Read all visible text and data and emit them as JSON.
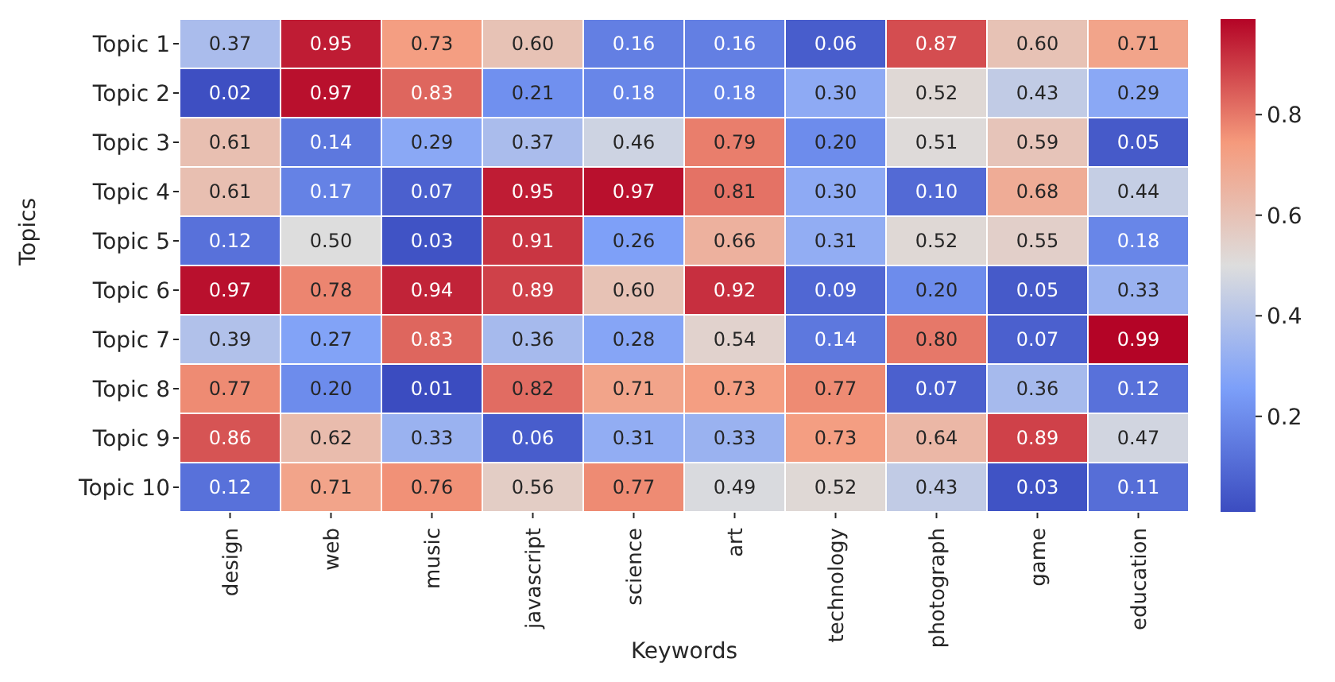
{
  "chart_data": {
    "type": "heatmap",
    "xlabel": "Keywords",
    "ylabel": "Topics",
    "categories": [
      "design",
      "web",
      "music",
      "javascript",
      "science",
      "art",
      "technology",
      "photograph",
      "game",
      "education"
    ],
    "y_categories": [
      "Topic 1",
      "Topic 2",
      "Topic 3",
      "Topic 4",
      "Topic 5",
      "Topic 6",
      "Topic 7",
      "Topic 8",
      "Topic 9",
      "Topic 10"
    ],
    "cells": [
      [
        0.37,
        0.95,
        0.73,
        0.6,
        0.16,
        0.16,
        0.06,
        0.87,
        0.6,
        0.71
      ],
      [
        0.02,
        0.97,
        0.83,
        0.21,
        0.18,
        0.18,
        0.3,
        0.52,
        0.43,
        0.29
      ],
      [
        0.61,
        0.14,
        0.29,
        0.37,
        0.46,
        0.79,
        0.2,
        0.51,
        0.59,
        0.05
      ],
      [
        0.61,
        0.17,
        0.07,
        0.95,
        0.97,
        0.81,
        0.3,
        0.1,
        0.68,
        0.44
      ],
      [
        0.12,
        0.5,
        0.03,
        0.91,
        0.26,
        0.66,
        0.31,
        0.52,
        0.55,
        0.18
      ],
      [
        0.97,
        0.78,
        0.94,
        0.89,
        0.6,
        0.92,
        0.09,
        0.2,
        0.05,
        0.33
      ],
      [
        0.39,
        0.27,
        0.83,
        0.36,
        0.28,
        0.54,
        0.14,
        0.8,
        0.07,
        0.99
      ],
      [
        0.77,
        0.2,
        0.01,
        0.82,
        0.71,
        0.73,
        0.77,
        0.07,
        0.36,
        0.12
      ],
      [
        0.86,
        0.62,
        0.33,
        0.06,
        0.31,
        0.33,
        0.73,
        0.64,
        0.89,
        0.47
      ],
      [
        0.12,
        0.71,
        0.76,
        0.56,
        0.77,
        0.49,
        0.52,
        0.43,
        0.03,
        0.11
      ]
    ],
    "cell_labels": [
      [
        "0.37",
        "0.95",
        "0.73",
        "0.60",
        "0.16",
        "0.16",
        "0.06",
        "0.87",
        "0.60",
        "0.71"
      ],
      [
        "0.02",
        "0.97",
        "0.83",
        "0.21",
        "0.18",
        "0.18",
        "0.30",
        "0.52",
        "0.43",
        "0.29"
      ],
      [
        "0.61",
        "0.14",
        "0.29",
        "0.37",
        "0.46",
        "0.79",
        "0.20",
        "0.51",
        "0.59",
        "0.05"
      ],
      [
        "0.61",
        "0.17",
        "0.07",
        "0.95",
        "0.97",
        "0.81",
        "0.30",
        "0.10",
        "0.68",
        "0.44"
      ],
      [
        "0.12",
        "0.50",
        "0.03",
        "0.91",
        "0.26",
        "0.66",
        "0.31",
        "0.52",
        "0.55",
        "0.18"
      ],
      [
        "0.97",
        "0.78",
        "0.94",
        "0.89",
        "0.60",
        "0.92",
        "0.09",
        "0.20",
        "0.05",
        "0.33"
      ],
      [
        "0.39",
        "0.27",
        "0.83",
        "0.36",
        "0.28",
        "0.54",
        "0.14",
        "0.80",
        "0.07",
        "0.99"
      ],
      [
        "0.77",
        "0.20",
        "0.01",
        "0.82",
        "0.71",
        "0.73",
        "0.77",
        "0.07",
        "0.36",
        "0.12"
      ],
      [
        "0.86",
        "0.62",
        "0.33",
        "0.06",
        "0.31",
        "0.33",
        "0.73",
        "0.64",
        "0.89",
        "0.47"
      ],
      [
        "0.12",
        "0.71",
        "0.76",
        "0.56",
        "0.77",
        "0.49",
        "0.52",
        "0.43",
        "0.03",
        "0.11"
      ]
    ],
    "clim": [
      0.01,
      0.99
    ],
    "cticks": [
      0.2,
      0.4,
      0.6,
      0.8
    ]
  }
}
